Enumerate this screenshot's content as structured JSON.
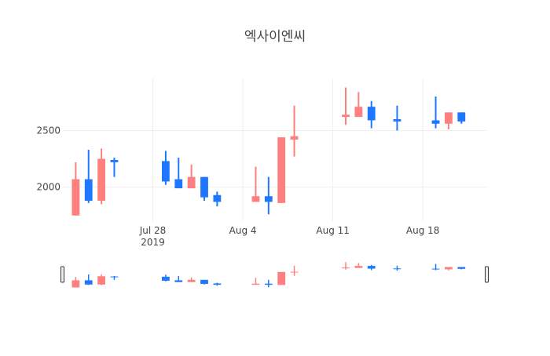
{
  "chart_data": {
    "type": "candlestick",
    "title": "엑사이엔씨",
    "xlabel": "",
    "ylabel": "",
    "y_ticks": [
      2000,
      2500
    ],
    "x_ticks": [
      {
        "date": "2019-07-28",
        "label": "Jul 28",
        "sublabel": "2019"
      },
      {
        "date": "2019-08-04",
        "label": "Aug 4",
        "sublabel": ""
      },
      {
        "date": "2019-08-11",
        "label": "Aug 11",
        "sublabel": ""
      },
      {
        "date": "2019-08-18",
        "label": "Aug 18",
        "sublabel": ""
      }
    ],
    "x_range": [
      "2019-07-21",
      "2019-08-23"
    ],
    "y_range": [
      1700,
      2960
    ],
    "increasing_color": "#ff7f7f",
    "decreasing_color": "#1f77ff",
    "grid": true,
    "legend": false,
    "rangeslider": true,
    "candles": [
      {
        "date": "2019-07-22",
        "open": 1750,
        "high": 2220,
        "low": 1750,
        "close": 2070
      },
      {
        "date": "2019-07-23",
        "open": 2070,
        "high": 2330,
        "low": 1860,
        "close": 1880
      },
      {
        "date": "2019-07-24",
        "open": 1880,
        "high": 2340,
        "low": 1850,
        "close": 2250
      },
      {
        "date": "2019-07-25",
        "open": 2240,
        "high": 2260,
        "low": 2090,
        "close": 2220
      },
      {
        "date": "2019-07-29",
        "open": 2230,
        "high": 2320,
        "low": 2020,
        "close": 2050
      },
      {
        "date": "2019-07-30",
        "open": 2070,
        "high": 2260,
        "low": 1990,
        "close": 1990
      },
      {
        "date": "2019-07-31",
        "open": 1990,
        "high": 2200,
        "low": 1990,
        "close": 2090
      },
      {
        "date": "2019-08-01",
        "open": 2090,
        "high": 2090,
        "low": 1880,
        "close": 1910
      },
      {
        "date": "2019-08-02",
        "open": 1930,
        "high": 1960,
        "low": 1830,
        "close": 1870
      },
      {
        "date": "2019-08-05",
        "open": 1870,
        "high": 2180,
        "low": 1870,
        "close": 1920
      },
      {
        "date": "2019-08-06",
        "open": 1920,
        "high": 2090,
        "low": 1760,
        "close": 1870
      },
      {
        "date": "2019-08-07",
        "open": 1860,
        "high": 2440,
        "low": 1860,
        "close": 2440
      },
      {
        "date": "2019-08-08",
        "open": 2420,
        "high": 2720,
        "low": 2270,
        "close": 2450
      },
      {
        "date": "2019-08-12",
        "open": 2620,
        "high": 2880,
        "low": 2550,
        "close": 2640
      },
      {
        "date": "2019-08-13",
        "open": 2620,
        "high": 2840,
        "low": 2620,
        "close": 2710
      },
      {
        "date": "2019-08-14",
        "open": 2710,
        "high": 2760,
        "low": 2520,
        "close": 2590
      },
      {
        "date": "2019-08-16",
        "open": 2600,
        "high": 2720,
        "low": 2500,
        "close": 2580
      },
      {
        "date": "2019-08-19",
        "open": 2590,
        "high": 2800,
        "low": 2520,
        "close": 2560
      },
      {
        "date": "2019-08-20",
        "open": 2560,
        "high": 2660,
        "low": 2510,
        "close": 2660
      },
      {
        "date": "2019-08-21",
        "open": 2660,
        "high": 2660,
        "low": 2560,
        "close": 2580
      }
    ]
  }
}
